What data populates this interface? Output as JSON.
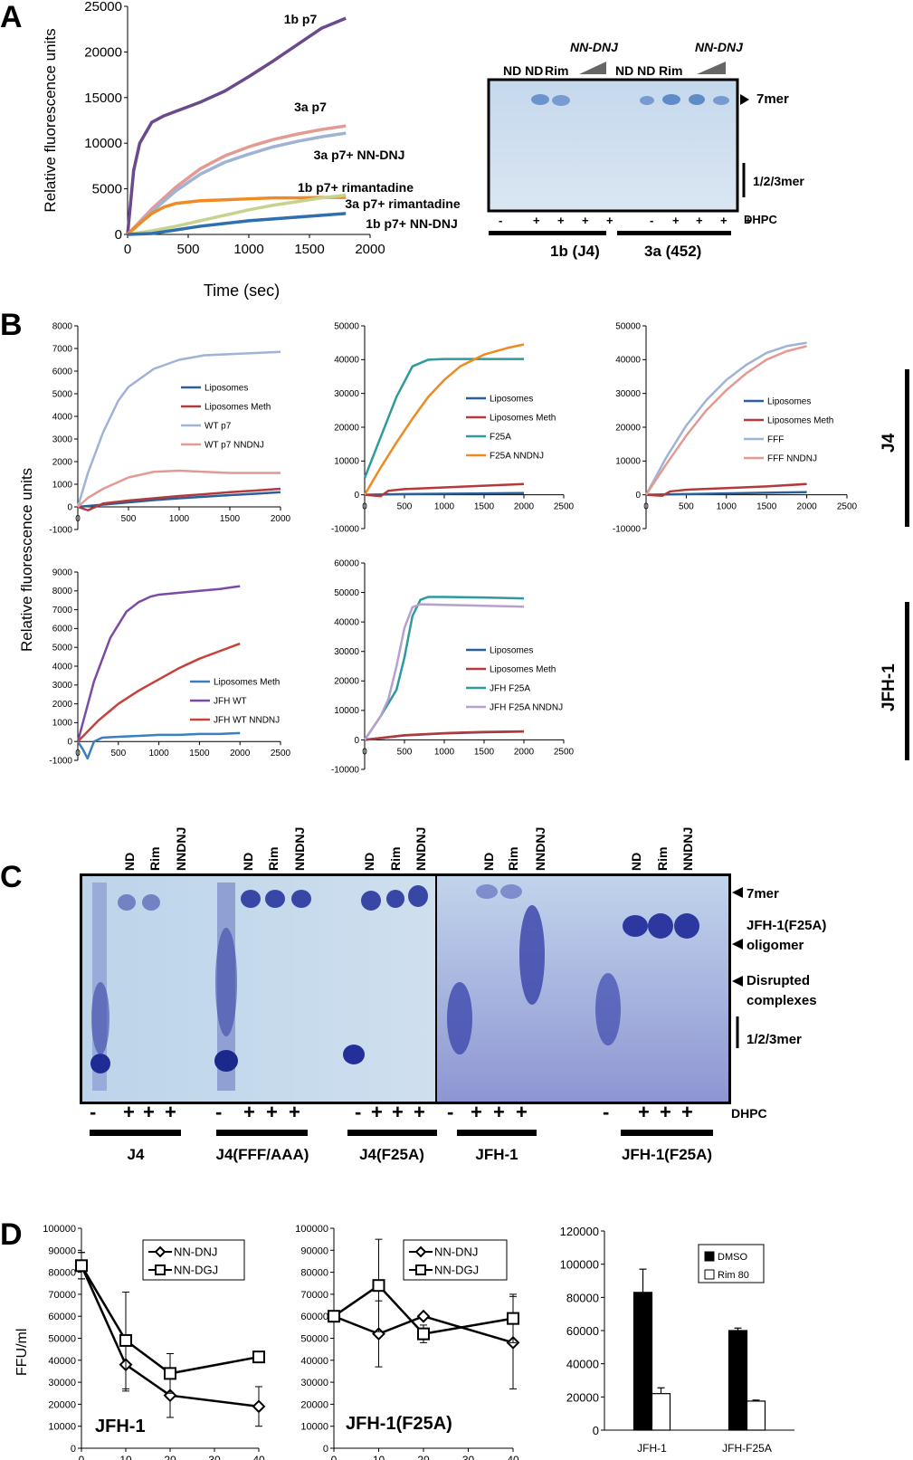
{
  "panels": {
    "A": {
      "letter": "A",
      "chart": {
        "ylabel": "Relative fluorescence units",
        "xlabel": "Time (sec)",
        "yticks": [
          "0",
          "5000",
          "10000",
          "15000",
          "20000",
          "25000"
        ],
        "xticks": [
          "0",
          "500",
          "1000",
          "1500",
          "2000"
        ]
      },
      "gel": {
        "lane_labels": [
          "ND",
          "ND",
          "Rim",
          "NN-DNJ",
          "ND",
          "ND",
          "Rim",
          "NN-DNJ"
        ],
        "nndnj_label_1": "NN-DNJ",
        "nndnj_label_2": "NN-DNJ",
        "top_labels_1": "ND  ND",
        "rim_1": "Rim",
        "top_labels_2": "ND  ND",
        "rim_2": "Rim",
        "marker_7mer": "7mer",
        "marker_low": "1/2/3mer",
        "dhpc_label": "DHPC",
        "dhpc_signs": [
          "-",
          "+",
          "+",
          "+",
          "+",
          "-",
          "+",
          "+",
          "+",
          "+"
        ],
        "group_1": "1b (J4)",
        "group_2": "3a (452)"
      }
    },
    "B": {
      "letter": "B",
      "ylabel": "Relative fluorescence units",
      "side_label_top": "J4",
      "side_label_bottom": "JFH-1"
    },
    "C": {
      "letter": "C",
      "lane_headers": [
        "ND",
        "Rim",
        "NNDNJ"
      ],
      "dhpc_label": "DHPC",
      "groups": [
        "J4",
        "J4(FFF/AAA)",
        "J4(F25A)",
        "JFH-1",
        "JFH-1(F25A)"
      ],
      "marker_7mer": "7mer",
      "marker_oligomer_1": "JFH-1(F25A)",
      "marker_oligomer_2": "oligomer",
      "marker_disrupted_1": "Disrupted",
      "marker_disrupted_2": "complexes",
      "marker_low": "1/2/3mer"
    },
    "D": {
      "letter": "D",
      "ylabel": "FFU/ml"
    }
  },
  "chart_data": [
    {
      "panel": "A",
      "type": "line",
      "xlabel": "Time (sec)",
      "ylabel": "Relative fluorescence units",
      "xlim": [
        0,
        2000
      ],
      "ylim": [
        0,
        25000
      ],
      "series": [
        {
          "name": "1b p7",
          "color": "#6a4a8c",
          "x": [
            0,
            50,
            100,
            200,
            300,
            400,
            600,
            800,
            1000,
            1200,
            1400,
            1600,
            1800
          ],
          "y": [
            0,
            7000,
            10000,
            12300,
            13000,
            13500,
            14500,
            15700,
            17300,
            19000,
            20800,
            22600,
            23700
          ]
        },
        {
          "name": "3a p7",
          "color": "#e39a92",
          "x": [
            0,
            200,
            400,
            600,
            800,
            1000,
            1200,
            1400,
            1600,
            1800
          ],
          "y": [
            0,
            2800,
            5200,
            7200,
            8600,
            9600,
            10400,
            11000,
            11500,
            11900
          ]
        },
        {
          "name": "3a p7+ NN-DNJ",
          "color": "#9fb3d6",
          "x": [
            0,
            200,
            400,
            600,
            800,
            1000,
            1200,
            1400,
            1600,
            1800
          ],
          "y": [
            0,
            2500,
            4800,
            6600,
            7900,
            8800,
            9600,
            10200,
            10700,
            11100
          ]
        },
        {
          "name": "1b p7+ rimantadine",
          "color": "#f08a24",
          "x": [
            0,
            100,
            200,
            300,
            400,
            600,
            800,
            1000,
            1200,
            1400,
            1600,
            1800
          ],
          "y": [
            0,
            1200,
            2300,
            3000,
            3400,
            3700,
            3800,
            3900,
            4000,
            4000,
            4050,
            4050
          ]
        },
        {
          "name": "3a p7+ rimantadine",
          "color": "#c6d38e",
          "x": [
            0,
            200,
            400,
            600,
            800,
            1000,
            1200,
            1400,
            1600,
            1800
          ],
          "y": [
            0,
            400,
            900,
            1500,
            2100,
            2700,
            3200,
            3600,
            4000,
            4300
          ]
        },
        {
          "name": "1b p7+ NN-DNJ",
          "color": "#2f6fb0",
          "x": [
            0,
            200,
            400,
            600,
            800,
            1000,
            1200,
            1400,
            1600,
            1800
          ],
          "y": [
            0,
            100,
            500,
            900,
            1200,
            1500,
            1700,
            1900,
            2100,
            2300
          ]
        }
      ]
    },
    {
      "panel": "B1",
      "type": "line",
      "xlim": [
        0,
        2000
      ],
      "ylim": [
        -1000,
        8000
      ],
      "xticks": [
        "0",
        "500",
        "1000",
        "1500",
        "2000"
      ],
      "yticks": [
        "-1000",
        "0",
        "1000",
        "2000",
        "3000",
        "4000",
        "5000",
        "6000",
        "7000",
        "8000"
      ],
      "series": [
        {
          "name": "Liposomes",
          "color": "#2a5f9a",
          "x": [
            0,
            250,
            500,
            750,
            1000,
            1250,
            1500,
            1750,
            2000
          ],
          "y": [
            0,
            100,
            200,
            300,
            380,
            450,
            520,
            580,
            650
          ]
        },
        {
          "name": "Liposomes Meth",
          "color": "#b33a3a",
          "x": [
            0,
            100,
            250,
            500,
            750,
            1000,
            1250,
            1500,
            1750,
            2000
          ],
          "y": [
            0,
            -150,
            150,
            280,
            380,
            480,
            560,
            650,
            720,
            800
          ]
        },
        {
          "name": "WT p7",
          "color": "#9fb3d6",
          "x": [
            0,
            100,
            250,
            400,
            500,
            750,
            1000,
            1250,
            1500,
            1750,
            2000
          ],
          "y": [
            0,
            1500,
            3300,
            4700,
            5300,
            6100,
            6500,
            6700,
            6750,
            6800,
            6850
          ]
        },
        {
          "name": "WT p7 NNDNJ",
          "color": "#e39a92",
          "x": [
            0,
            100,
            250,
            400,
            500,
            750,
            1000,
            1250,
            1500,
            1750,
            2000
          ],
          "y": [
            0,
            400,
            800,
            1100,
            1300,
            1550,
            1600,
            1550,
            1500,
            1500,
            1500
          ]
        }
      ]
    },
    {
      "panel": "B2",
      "type": "line",
      "xlim": [
        0,
        2500
      ],
      "ylim": [
        -10000,
        50000
      ],
      "xticks": [
        "0",
        "500",
        "1000",
        "1500",
        "2000",
        "2500"
      ],
      "yticks": [
        "-10000",
        "0",
        "10000",
        "20000",
        "30000",
        "40000",
        "50000"
      ],
      "series": [
        {
          "name": "Liposomes",
          "color": "#2a5f9a",
          "x": [
            0,
            500,
            1000,
            1500,
            2000
          ],
          "y": [
            0,
            200,
            300,
            400,
            500
          ]
        },
        {
          "name": "Liposomes Meth",
          "color": "#b33a3a",
          "x": [
            0,
            200,
            300,
            500,
            1000,
            1500,
            2000
          ],
          "y": [
            0,
            -400,
            1200,
            1700,
            2200,
            2700,
            3200
          ]
        },
        {
          "name": "F25A",
          "color": "#2e9a9e",
          "x": [
            0,
            200,
            400,
            600,
            800,
            1000,
            1500,
            2000
          ],
          "y": [
            5000,
            17000,
            29000,
            38000,
            40000,
            40200,
            40200,
            40200
          ]
        },
        {
          "name": "F25A NNDNJ",
          "color": "#ee8a22",
          "x": [
            0,
            200,
            400,
            600,
            800,
            1000,
            1200,
            1500,
            1800,
            2000
          ],
          "y": [
            0,
            8000,
            15500,
            22500,
            29000,
            34000,
            38000,
            41500,
            43500,
            44500
          ]
        }
      ]
    },
    {
      "panel": "B3",
      "type": "line",
      "xlim": [
        0,
        2500
      ],
      "ylim": [
        -10000,
        50000
      ],
      "xticks": [
        "0",
        "500",
        "1000",
        "1500",
        "2000",
        "2500"
      ],
      "yticks": [
        "-10000",
        "0",
        "10000",
        "20000",
        "30000",
        "40000",
        "50000"
      ],
      "series": [
        {
          "name": "Liposomes",
          "color": "#2a5f9a",
          "x": [
            0,
            500,
            1000,
            1500,
            2000
          ],
          "y": [
            0,
            200,
            400,
            600,
            800
          ]
        },
        {
          "name": "Liposomes Meth",
          "color": "#b33a3a",
          "x": [
            0,
            200,
            300,
            500,
            1000,
            1500,
            2000
          ],
          "y": [
            0,
            -300,
            1000,
            1500,
            2000,
            2500,
            3200
          ]
        },
        {
          "name": "FFF",
          "color": "#9fb3d6",
          "x": [
            0,
            250,
            500,
            750,
            1000,
            1250,
            1500,
            1750,
            2000
          ],
          "y": [
            0,
            11000,
            20500,
            28000,
            34000,
            38500,
            42000,
            44000,
            45000
          ]
        },
        {
          "name": "FFF NNDNJ",
          "color": "#e39a92",
          "x": [
            0,
            250,
            500,
            750,
            1000,
            1250,
            1500,
            1750,
            2000
          ],
          "y": [
            0,
            9000,
            17500,
            25000,
            31000,
            36000,
            40000,
            42500,
            44000
          ]
        }
      ]
    },
    {
      "panel": "B4",
      "type": "line",
      "xlim": [
        0,
        2500
      ],
      "ylim": [
        -1000,
        9000
      ],
      "xticks": [
        "0",
        "500",
        "1000",
        "1500",
        "2000",
        "2500"
      ],
      "yticks": [
        "-1000",
        "0",
        "1000",
        "2000",
        "3000",
        "4000",
        "5000",
        "6000",
        "7000",
        "8000",
        "9000"
      ],
      "series": [
        {
          "name": "Liposomes Meth",
          "color": "#3a7fc0",
          "x": [
            0,
            60,
            120,
            200,
            300,
            500,
            750,
            1000,
            1250,
            1500,
            1750,
            2000
          ],
          "y": [
            0,
            -400,
            -900,
            0,
            200,
            250,
            300,
            350,
            350,
            400,
            400,
            450
          ]
        },
        {
          "name": "JFH WT",
          "color": "#7b4aa6",
          "x": [
            0,
            200,
            400,
            600,
            750,
            900,
            1000,
            1250,
            1500,
            1750,
            2000
          ],
          "y": [
            0,
            3200,
            5500,
            6900,
            7400,
            7700,
            7800,
            7900,
            8000,
            8100,
            8250
          ]
        },
        {
          "name": "JFH WT NNDNJ",
          "color": "#c8403a",
          "x": [
            0,
            250,
            500,
            750,
            1000,
            1250,
            1500,
            1750,
            2000
          ],
          "y": [
            0,
            1100,
            2000,
            2700,
            3300,
            3900,
            4400,
            4800,
            5200
          ]
        }
      ]
    },
    {
      "panel": "B5",
      "type": "line",
      "xlim": [
        0,
        2500
      ],
      "ylim": [
        -10000,
        60000
      ],
      "xticks": [
        "0",
        "500",
        "1000",
        "1500",
        "2000",
        "2500"
      ],
      "yticks": [
        "-10000",
        "0",
        "10000",
        "20000",
        "30000",
        "40000",
        "50000",
        "60000"
      ],
      "series": [
        {
          "name": "Liposomes",
          "color": "#2a5f9a",
          "x": [
            0,
            500,
            1000,
            1500,
            2000
          ],
          "y": [
            0,
            1500,
            2200,
            2600,
            2800
          ]
        },
        {
          "name": "Liposomes Meth",
          "color": "#b33a3a",
          "x": [
            0,
            500,
            1000,
            1500,
            2000
          ],
          "y": [
            0,
            1600,
            2300,
            2700,
            2900
          ]
        },
        {
          "name": "JFH F25A",
          "color": "#2e9a9e",
          "x": [
            0,
            200,
            400,
            500,
            600,
            700,
            800,
            1000,
            1500,
            2000
          ],
          "y": [
            0,
            8000,
            17000,
            28000,
            42000,
            47500,
            48500,
            48500,
            48300,
            48000
          ]
        },
        {
          "name": "JFH F25A NNDNJ",
          "color": "#b7a0cf",
          "x": [
            0,
            200,
            300,
            400,
            500,
            600,
            700,
            1000,
            1500,
            2000
          ],
          "y": [
            0,
            8000,
            14000,
            25000,
            38000,
            45000,
            46000,
            45800,
            45500,
            45200
          ]
        }
      ]
    },
    {
      "panel": "D1",
      "type": "line",
      "xlim": [
        0,
        40
      ],
      "ylim": [
        0,
        100000
      ],
      "ylabel": "FFU/ml",
      "annotation": "JFH-1",
      "xticks": [
        "0",
        "10",
        "20",
        "30",
        "40"
      ],
      "yticks": [
        "0",
        "10000",
        "20000",
        "30000",
        "40000",
        "50000",
        "60000",
        "70000",
        "80000",
        "90000",
        "100000"
      ],
      "series": [
        {
          "name": "NN-DNJ",
          "marker": "diamond",
          "x": [
            0,
            10,
            20,
            40
          ],
          "y": [
            83000,
            38000,
            24000,
            19000
          ],
          "err": [
            6000,
            12000,
            10000,
            9000
          ]
        },
        {
          "name": "NN-DGJ",
          "marker": "square",
          "x": [
            0,
            10,
            20,
            40
          ],
          "y": [
            83000,
            49000,
            34000,
            41500
          ],
          "err": [
            6000,
            22000,
            9000,
            0
          ]
        }
      ]
    },
    {
      "panel": "D2",
      "type": "line",
      "xlim": [
        0,
        40
      ],
      "ylim": [
        0,
        100000
      ],
      "annotation": "JFH-1(F25A)",
      "xticks": [
        "0",
        "10",
        "20",
        "30",
        "40"
      ],
      "yticks": [
        "0",
        "10000",
        "20000",
        "30000",
        "40000",
        "50000",
        "60000",
        "70000",
        "80000",
        "90000",
        "100000"
      ],
      "series": [
        {
          "name": "NN-DNJ",
          "marker": "diamond",
          "x": [
            0,
            10,
            20,
            40
          ],
          "y": [
            60000,
            52000,
            60000,
            48000
          ],
          "err": [
            0,
            15000,
            0,
            21000
          ]
        },
        {
          "name": "NN-DGJ",
          "marker": "square",
          "x": [
            0,
            10,
            20,
            40
          ],
          "y": [
            60000,
            74000,
            52000,
            59000
          ],
          "err": [
            0,
            21000,
            4000,
            11000
          ]
        }
      ]
    },
    {
      "panel": "D3",
      "type": "bar",
      "categories": [
        "JFH-1",
        "JFH-F25A"
      ],
      "ylim": [
        0,
        120000
      ],
      "yticks": [
        "0",
        "20000",
        "40000",
        "60000",
        "80000",
        "100000",
        "120000"
      ],
      "series": [
        {
          "name": "DMSO",
          "color": "#000000",
          "values": [
            83000,
            60000
          ],
          "err": [
            14000,
            1500
          ]
        },
        {
          "name": "Rim 80",
          "color": "#ffffff",
          "values": [
            22000,
            17500
          ],
          "err": [
            3500,
            600
          ]
        }
      ]
    }
  ]
}
